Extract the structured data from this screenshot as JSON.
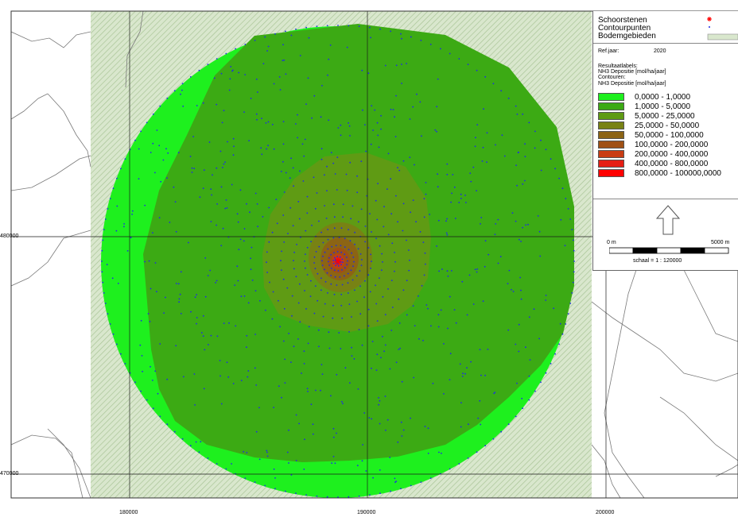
{
  "axes": {
    "y_ticks": [
      "480000",
      "470000"
    ],
    "x_ticks": [
      "180000",
      "190000",
      "200000"
    ]
  },
  "colors": {
    "background_grass": "#c8dcb9",
    "points": "#1e2ee6",
    "chimney": "#ff0000",
    "grid": "#1a1a1a"
  },
  "legend": {
    "layers": [
      {
        "label": "Schoorstenen",
        "symbol": "red-asterisk"
      },
      {
        "label": "Contourpunten",
        "symbol": "blue-dot"
      },
      {
        "label": "Bodemgebieden",
        "symbol": "hatched-box"
      }
    ],
    "ref_year_label": "Ref.jaar:",
    "ref_year_value": "2020",
    "result_labels_title": "Resultaatlabels:",
    "result_labels_value": "NH3 Depositie [mol/ha/jaar]",
    "contours_title": "Contouren:",
    "contours_value": "NH3 Depositie [mol/ha/jaar]",
    "classes": [
      {
        "label": "0,0000 - 1,0000",
        "color": "#1ef01e"
      },
      {
        "label": "1,0000 - 5,0000",
        "color": "#3caa14"
      },
      {
        "label": "5,0000 - 25,0000",
        "color": "#5f9b14"
      },
      {
        "label": "25,0000 - 50,0000",
        "color": "#788214"
      },
      {
        "label": "50,0000 - 100,0000",
        "color": "#8c6414"
      },
      {
        "label": "100,0000 - 200,0000",
        "color": "#a05014"
      },
      {
        "label": "200,0000 - 400,0000",
        "color": "#c83c14"
      },
      {
        "label": "400,0000 - 800,0000",
        "color": "#e61e14"
      },
      {
        "label": "800,0000 - 100000,0000",
        "color": "#ff0000"
      }
    ]
  },
  "north_arrow": {
    "icon": "north-arrow-icon"
  },
  "scalebar": {
    "start_label": "0 m",
    "end_label": "5000 m",
    "scale_text": "schaal = 1 : 120000"
  }
}
